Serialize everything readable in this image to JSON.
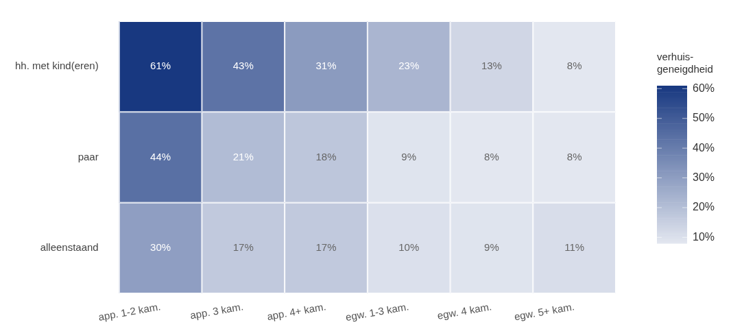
{
  "chart_data": {
    "type": "heatmap",
    "clabel": "verhuis-geneigdheid",
    "categories": [
      "app. 1-2 kam.",
      "app. 3 kam.",
      "app. 4+ kam.",
      "egw. 1-3 kam.",
      "egw. 4 kam.",
      "egw. 5+ kam."
    ],
    "y_categories": [
      "hh. met kind(eren)",
      "paar",
      "alleenstaand"
    ],
    "cells": [
      [
        61,
        43,
        31,
        23,
        13,
        8
      ],
      [
        44,
        21,
        18,
        9,
        8,
        8
      ],
      [
        30,
        17,
        17,
        10,
        9,
        11
      ]
    ],
    "cell_labels": [
      [
        "61%",
        "43%",
        "31%",
        "23%",
        "13%",
        "8%"
      ],
      [
        "44%",
        "21%",
        "18%",
        "9%",
        "8%",
        "8%"
      ],
      [
        "30%",
        "17%",
        "17%",
        "10%",
        "9%",
        "11%"
      ]
    ],
    "clim": [
      8,
      61
    ],
    "cticks": [
      {
        "value": 10,
        "label": "10%"
      },
      {
        "value": 20,
        "label": "20%"
      },
      {
        "value": 30,
        "label": "30%"
      },
      {
        "value": 40,
        "label": "40%"
      },
      {
        "value": 50,
        "label": "50%"
      },
      {
        "value": 60,
        "label": "60%"
      }
    ]
  }
}
